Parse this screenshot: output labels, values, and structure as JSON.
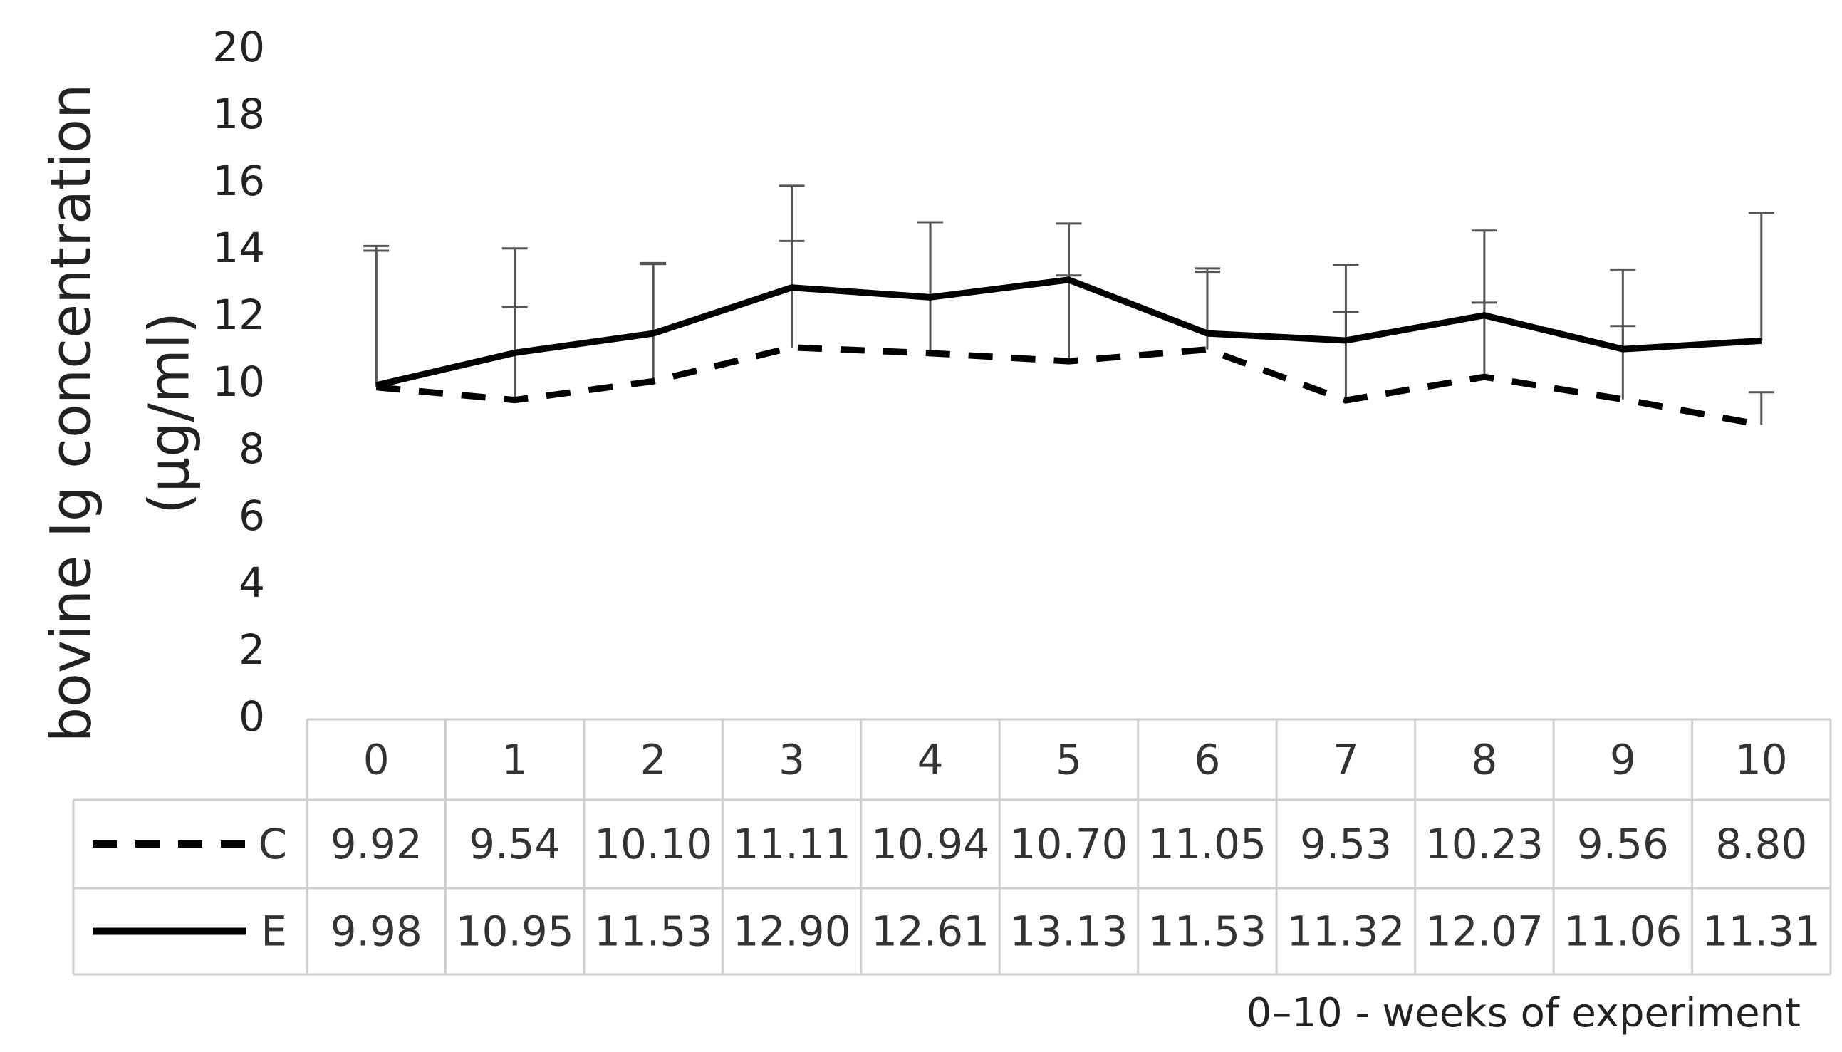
{
  "chart_data": {
    "type": "line",
    "y_label": [
      "bovine Ig concentration",
      "(µg/ml)"
    ],
    "x_label": "0–10 - weeks of experiment",
    "categories": [
      "0",
      "1",
      "2",
      "3",
      "4",
      "5",
      "6",
      "7",
      "8",
      "9",
      "10"
    ],
    "ylim": [
      0,
      20
    ],
    "yticks": [
      0,
      2,
      4,
      6,
      8,
      10,
      12,
      14,
      16,
      18,
      20
    ],
    "series": [
      {
        "name": "C",
        "color": "#000000",
        "line_style": "dashed",
        "values": [
          9.92,
          9.54,
          10.1,
          11.11,
          10.94,
          10.7,
          11.05,
          9.53,
          10.23,
          9.56,
          8.8
        ],
        "value_labels": [
          "9.92",
          "9.54",
          "10.10",
          "11.11",
          "10.94",
          "10.70",
          "11.05",
          "9.53",
          "10.23",
          "9.56",
          "8.80"
        ],
        "errors": [
          4.08,
          2.77,
          3.5,
          3.18,
          3.91,
          2.56,
          2.32,
          2.64,
          2.22,
          2.19,
          0.97
        ]
      },
      {
        "name": "E",
        "color": "#000000",
        "line_style": "solid",
        "values": [
          9.98,
          10.95,
          11.53,
          12.9,
          12.61,
          13.13,
          11.53,
          11.32,
          12.07,
          11.06,
          11.31
        ],
        "value_labels": [
          "9.98",
          "10.95",
          "11.53",
          "12.90",
          "12.61",
          "13.13",
          "11.53",
          "11.32",
          "12.07",
          "11.06",
          "11.31"
        ],
        "errors": [
          4.16,
          3.12,
          2.1,
          3.04,
          2.24,
          1.68,
          1.94,
          2.26,
          2.53,
          2.38,
          3.82
        ]
      }
    ]
  }
}
